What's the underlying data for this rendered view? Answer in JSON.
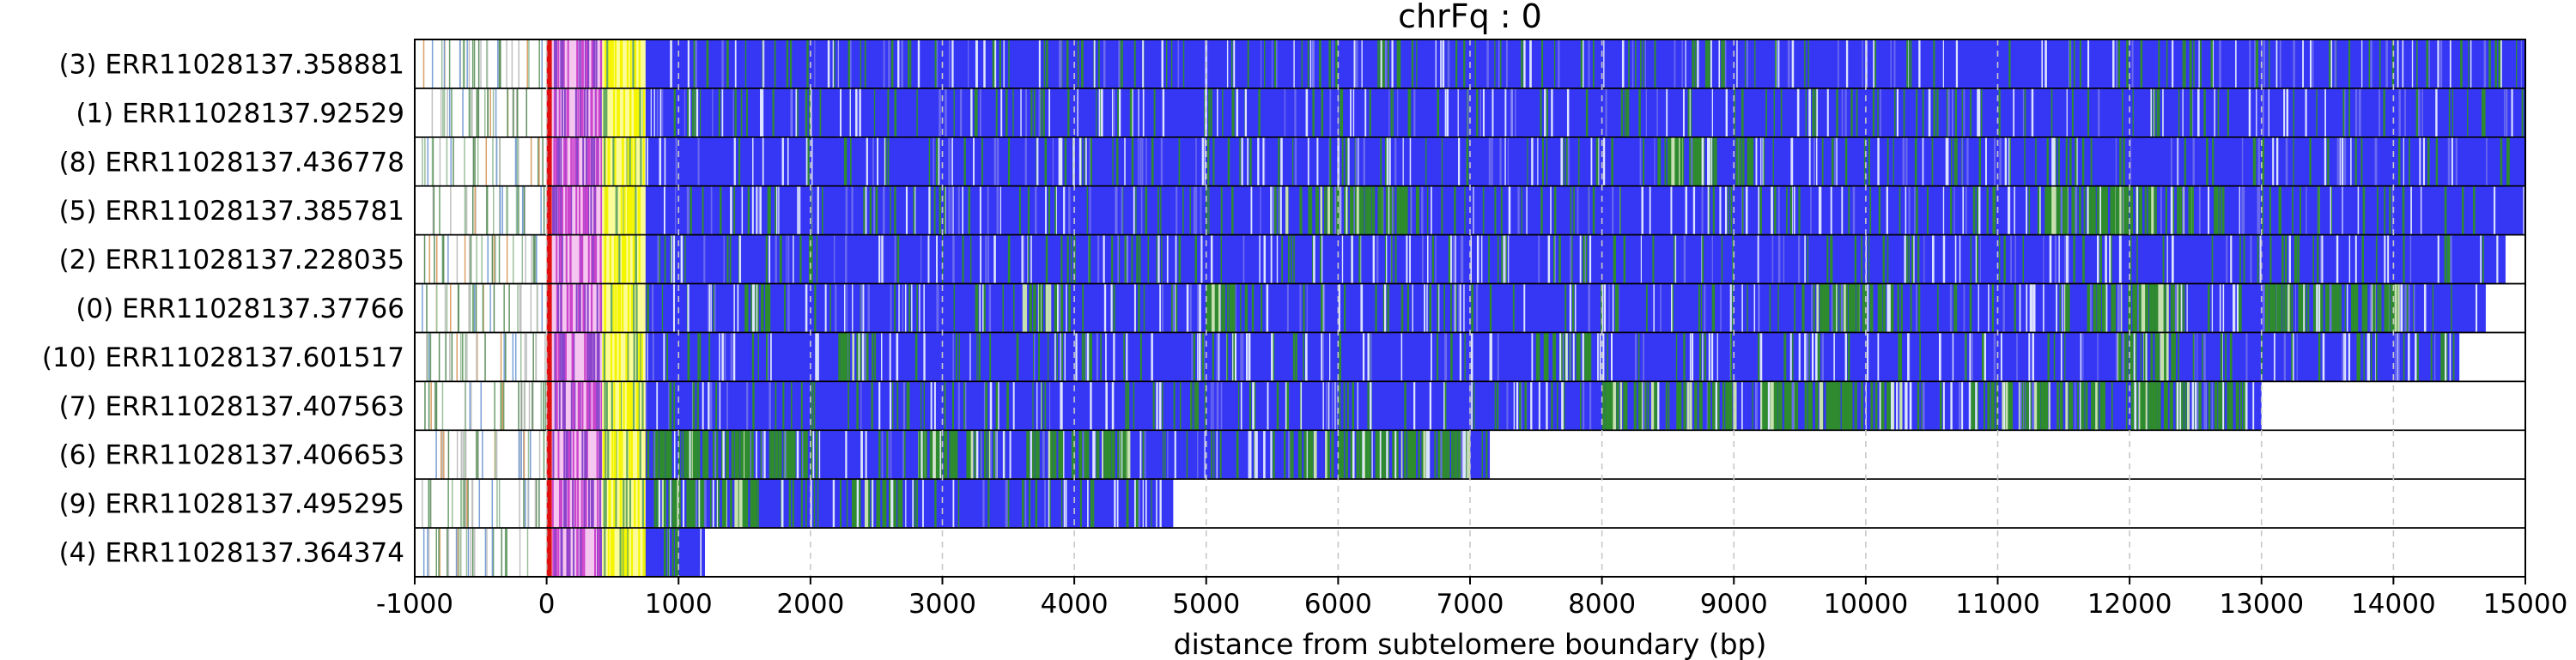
{
  "chart_data": {
    "type": "heatmap",
    "title": "chrFq : 0",
    "xlabel": "distance from subtelomere boundary (bp)",
    "xlim": [
      -1000,
      15000
    ],
    "xticks": [
      -1000,
      0,
      1000,
      2000,
      3000,
      4000,
      5000,
      6000,
      7000,
      8000,
      9000,
      10000,
      11000,
      12000,
      13000,
      14000,
      15000
    ],
    "grid": "vertical dashed at x ticks",
    "colors": {
      "tandem_repeat": "#3636f5",
      "other_repeat": "#2e8b2e",
      "subtelomere_start": "#e01010",
      "subtelomere_pink": "#cc44cc",
      "subtelomere_yellow": "#f5f500",
      "telomere_side_lines": "#8fa88f"
    },
    "reads": [
      {
        "label": "(3) ERR11028137.358881",
        "start": -1000,
        "end": 15000,
        "green_regions": [
          [
            6300,
            6450
          ]
        ]
      },
      {
        "label": "(1) ERR11028137.92529",
        "start": -1000,
        "end": 15000,
        "green_regions": []
      },
      {
        "label": "(8) ERR11028137.436778",
        "start": -1000,
        "end": 15000,
        "green_regions": [
          [
            8400,
            9200
          ]
        ]
      },
      {
        "label": "(5) ERR11028137.385781",
        "start": -1000,
        "end": 15000,
        "green_regions": [
          [
            5600,
            6600
          ],
          [
            11300,
            12700
          ]
        ]
      },
      {
        "label": "(2) ERR11028137.228035",
        "start": -1000,
        "end": 14850,
        "green_regions": []
      },
      {
        "label": "(0) ERR11028137.37766",
        "start": -1000,
        "end": 14700,
        "green_regions": [
          [
            1500,
            1700
          ],
          [
            3600,
            3900
          ],
          [
            5000,
            5300
          ],
          [
            9500,
            10200
          ],
          [
            11500,
            12400
          ],
          [
            13000,
            14100
          ]
        ]
      },
      {
        "label": "(10) ERR11028137.601517",
        "start": -1000,
        "end": 14500,
        "green_regions": [
          [
            2200,
            2500
          ],
          [
            7500,
            7900
          ],
          [
            11900,
            12400
          ]
        ]
      },
      {
        "label": "(7) ERR11028137.407563",
        "start": -1000,
        "end": 13000,
        "green_regions": [
          [
            8000,
            9000
          ],
          [
            9200,
            10300
          ],
          [
            10800,
            11800
          ],
          [
            12000,
            12900
          ]
        ]
      },
      {
        "label": "(6) ERR11028137.406653",
        "start": -1000,
        "end": 7150,
        "green_regions": [
          [
            800,
            2000
          ],
          [
            2800,
            3400
          ],
          [
            3600,
            4400
          ],
          [
            5600,
            7000
          ]
        ]
      },
      {
        "label": "(9) ERR11028137.495295",
        "start": -1000,
        "end": 4750,
        "green_regions": [
          [
            800,
            1600
          ],
          [
            2300,
            2700
          ]
        ]
      },
      {
        "label": "(4) ERR11028137.364374",
        "start": -1000,
        "end": 1200,
        "green_regions": []
      }
    ]
  }
}
